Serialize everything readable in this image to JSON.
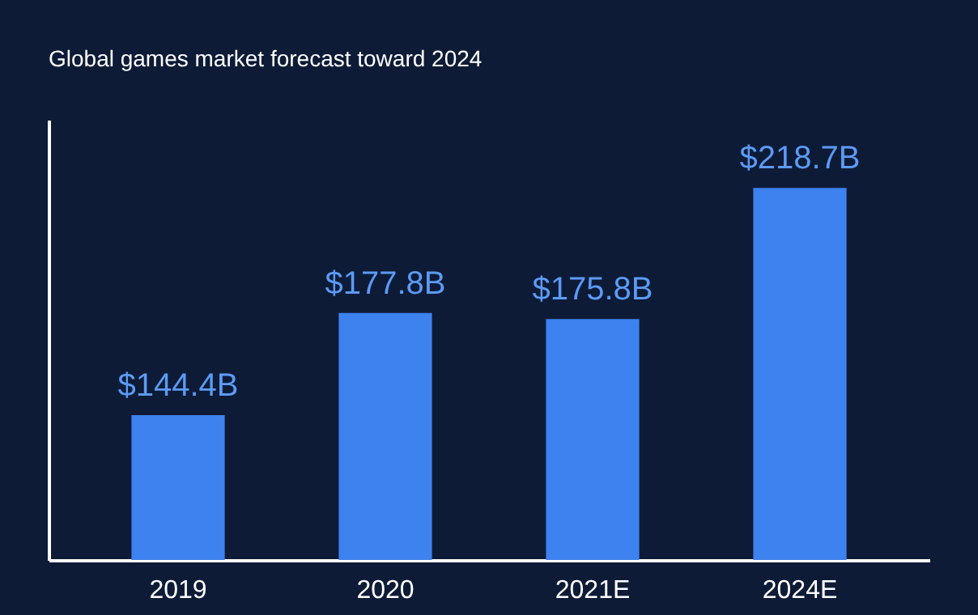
{
  "chart_data": {
    "type": "bar",
    "title": "Global games market forecast toward 2024",
    "categories": [
      "2019",
      "2020",
      "2021E",
      "2024E"
    ],
    "values": [
      144.4,
      177.8,
      175.8,
      218.7
    ],
    "value_labels": [
      "$144.4B",
      "$177.8B",
      "$175.8B",
      "$218.7B"
    ],
    "color": "#3d82ee",
    "ylim": [
      97,
      241
    ],
    "grid": false
  }
}
